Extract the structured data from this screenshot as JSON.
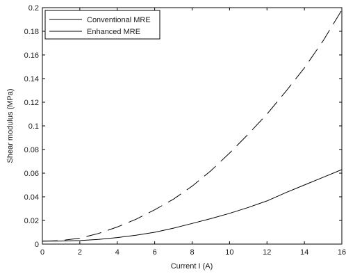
{
  "chart_data": {
    "type": "line",
    "title": "",
    "xlabel": "Current I (A)",
    "ylabel": "Shear modulus (MPa)",
    "xlim": [
      0,
      16
    ],
    "ylim": [
      0,
      0.2
    ],
    "xticks": [
      0,
      2,
      4,
      6,
      8,
      10,
      12,
      14,
      16
    ],
    "yticks": [
      0,
      0.02,
      0.04,
      0.06,
      0.08,
      0.1,
      0.12,
      0.14,
      0.16,
      0.18,
      0.2
    ],
    "xtick_labels": [
      "0",
      "2",
      "4",
      "6",
      "8",
      "10",
      "12",
      "14",
      "16"
    ],
    "ytick_labels": [
      "0",
      "0.02",
      "0.04",
      "0.06",
      "0.08",
      "0.1",
      "0.12",
      "0.14",
      "0.16",
      "0.18",
      "0.2"
    ],
    "grid": false,
    "legend_position": "top-left",
    "x": [
      0,
      1,
      2,
      3,
      4,
      5,
      6,
      7,
      8,
      9,
      10,
      11,
      12,
      13,
      14,
      15,
      16
    ],
    "series": [
      {
        "name": "Conventional MRE",
        "style": "solid",
        "color": "#000000",
        "values": [
          0.0025,
          0.0026,
          0.003,
          0.004,
          0.0055,
          0.0075,
          0.01,
          0.0135,
          0.0175,
          0.0215,
          0.026,
          0.031,
          0.0365,
          0.0435,
          0.05,
          0.0565,
          0.063
        ]
      },
      {
        "name": "Enhanced MRE",
        "style": "dashed",
        "color": "#000000",
        "values": [
          0.0025,
          0.003,
          0.005,
          0.009,
          0.0145,
          0.021,
          0.029,
          0.038,
          0.049,
          0.062,
          0.077,
          0.093,
          0.11,
          0.129,
          0.149,
          0.172,
          0.198
        ]
      }
    ]
  }
}
